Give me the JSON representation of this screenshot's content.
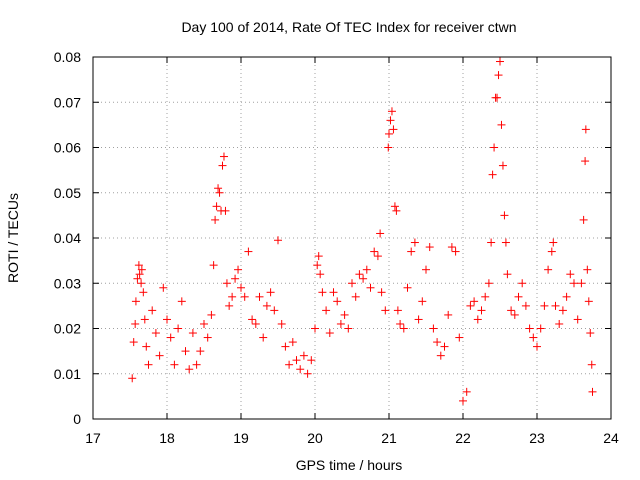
{
  "chart_data": {
    "type": "scatter",
    "title": "Day 100 of 2014, Rate Of TEC Index for receiver ctwn",
    "xlabel": "GPS time / hours",
    "ylabel": "ROTI / TECUs",
    "xlim": [
      17,
      24
    ],
    "ylim": [
      0,
      0.08
    ],
    "xticks": [
      17,
      18,
      19,
      20,
      21,
      22,
      23,
      24
    ],
    "yticks": [
      0,
      0.01,
      0.02,
      0.03,
      0.04,
      0.05,
      0.06,
      0.07,
      0.08
    ],
    "ytick_labels": [
      "0",
      "0.01",
      "0.02",
      "0.03",
      "0.04",
      "0.05",
      "0.06",
      "0.07",
      "0.08"
    ],
    "grid": true,
    "marker": "+",
    "marker_color": "#ff0000",
    "series": [
      {
        "name": "ROTI",
        "points": [
          [
            17.53,
            0.009
          ],
          [
            17.55,
            0.017
          ],
          [
            17.57,
            0.021
          ],
          [
            17.58,
            0.026
          ],
          [
            17.6,
            0.031
          ],
          [
            17.62,
            0.034
          ],
          [
            17.63,
            0.032
          ],
          [
            17.65,
            0.03
          ],
          [
            17.66,
            0.033
          ],
          [
            17.68,
            0.028
          ],
          [
            17.7,
            0.022
          ],
          [
            17.72,
            0.016
          ],
          [
            17.75,
            0.012
          ],
          [
            17.8,
            0.024
          ],
          [
            17.85,
            0.019
          ],
          [
            17.9,
            0.014
          ],
          [
            17.95,
            0.029
          ],
          [
            18.0,
            0.022
          ],
          [
            18.05,
            0.018
          ],
          [
            18.1,
            0.012
          ],
          [
            18.15,
            0.02
          ],
          [
            18.2,
            0.026
          ],
          [
            18.25,
            0.015
          ],
          [
            18.3,
            0.011
          ],
          [
            18.35,
            0.019
          ],
          [
            18.4,
            0.012
          ],
          [
            18.45,
            0.015
          ],
          [
            18.5,
            0.021
          ],
          [
            18.55,
            0.018
          ],
          [
            18.6,
            0.023
          ],
          [
            18.63,
            0.034
          ],
          [
            18.65,
            0.044
          ],
          [
            18.67,
            0.047
          ],
          [
            18.69,
            0.051
          ],
          [
            18.71,
            0.05
          ],
          [
            18.73,
            0.046
          ],
          [
            18.75,
            0.056
          ],
          [
            18.77,
            0.058
          ],
          [
            18.79,
            0.046
          ],
          [
            18.81,
            0.03
          ],
          [
            18.84,
            0.025
          ],
          [
            18.88,
            0.027
          ],
          [
            18.92,
            0.031
          ],
          [
            18.96,
            0.033
          ],
          [
            19.0,
            0.029
          ],
          [
            19.05,
            0.027
          ],
          [
            19.1,
            0.037
          ],
          [
            19.15,
            0.022
          ],
          [
            19.2,
            0.021
          ],
          [
            19.25,
            0.027
          ],
          [
            19.3,
            0.018
          ],
          [
            19.35,
            0.025
          ],
          [
            19.4,
            0.028
          ],
          [
            19.45,
            0.024
          ],
          [
            19.5,
            0.0395
          ],
          [
            19.55,
            0.021
          ],
          [
            19.6,
            0.016
          ],
          [
            19.65,
            0.012
          ],
          [
            19.7,
            0.017
          ],
          [
            19.75,
            0.013
          ],
          [
            19.8,
            0.011
          ],
          [
            19.85,
            0.014
          ],
          [
            19.9,
            0.01
          ],
          [
            19.95,
            0.013
          ],
          [
            20.0,
            0.02
          ],
          [
            20.03,
            0.034
          ],
          [
            20.05,
            0.036
          ],
          [
            20.07,
            0.032
          ],
          [
            20.1,
            0.028
          ],
          [
            20.15,
            0.024
          ],
          [
            20.2,
            0.019
          ],
          [
            20.25,
            0.028
          ],
          [
            20.3,
            0.026
          ],
          [
            20.35,
            0.021
          ],
          [
            20.4,
            0.023
          ],
          [
            20.45,
            0.02
          ],
          [
            20.5,
            0.03
          ],
          [
            20.55,
            0.027
          ],
          [
            20.6,
            0.032
          ],
          [
            20.65,
            0.031
          ],
          [
            20.7,
            0.033
          ],
          [
            20.75,
            0.029
          ],
          [
            20.8,
            0.037
          ],
          [
            20.85,
            0.036
          ],
          [
            20.88,
            0.041
          ],
          [
            20.9,
            0.028
          ],
          [
            20.95,
            0.024
          ],
          [
            20.99,
            0.06
          ],
          [
            21.0,
            0.063
          ],
          [
            21.02,
            0.066
          ],
          [
            21.04,
            0.068
          ],
          [
            21.06,
            0.064
          ],
          [
            21.08,
            0.047
          ],
          [
            21.1,
            0.046
          ],
          [
            21.12,
            0.024
          ],
          [
            21.15,
            0.021
          ],
          [
            21.2,
            0.02
          ],
          [
            21.25,
            0.029
          ],
          [
            21.3,
            0.037
          ],
          [
            21.35,
            0.039
          ],
          [
            21.4,
            0.022
          ],
          [
            21.45,
            0.026
          ],
          [
            21.5,
            0.033
          ],
          [
            21.55,
            0.038
          ],
          [
            21.6,
            0.02
          ],
          [
            21.65,
            0.017
          ],
          [
            21.7,
            0.014
          ],
          [
            21.75,
            0.016
          ],
          [
            21.8,
            0.023
          ],
          [
            21.85,
            0.038
          ],
          [
            21.9,
            0.037
          ],
          [
            21.95,
            0.018
          ],
          [
            22.0,
            0.004
          ],
          [
            22.05,
            0.006
          ],
          [
            22.1,
            0.025
          ],
          [
            22.15,
            0.026
          ],
          [
            22.2,
            0.022
          ],
          [
            22.25,
            0.024
          ],
          [
            22.3,
            0.027
          ],
          [
            22.35,
            0.03
          ],
          [
            22.38,
            0.039
          ],
          [
            22.4,
            0.054
          ],
          [
            22.42,
            0.06
          ],
          [
            22.44,
            0.071
          ],
          [
            22.46,
            0.071
          ],
          [
            22.48,
            0.076
          ],
          [
            22.5,
            0.079
          ],
          [
            22.52,
            0.065
          ],
          [
            22.54,
            0.056
          ],
          [
            22.56,
            0.045
          ],
          [
            22.58,
            0.039
          ],
          [
            22.6,
            0.032
          ],
          [
            22.65,
            0.024
          ],
          [
            22.7,
            0.023
          ],
          [
            22.75,
            0.027
          ],
          [
            22.8,
            0.03
          ],
          [
            22.85,
            0.025
          ],
          [
            22.9,
            0.02
          ],
          [
            22.95,
            0.018
          ],
          [
            23.0,
            0.016
          ],
          [
            23.05,
            0.02
          ],
          [
            23.1,
            0.025
          ],
          [
            23.15,
            0.033
          ],
          [
            23.2,
            0.037
          ],
          [
            23.22,
            0.039
          ],
          [
            23.25,
            0.025
          ],
          [
            23.3,
            0.021
          ],
          [
            23.35,
            0.024
          ],
          [
            23.4,
            0.027
          ],
          [
            23.45,
            0.032
          ],
          [
            23.5,
            0.03
          ],
          [
            23.55,
            0.022
          ],
          [
            23.6,
            0.03
          ],
          [
            23.63,
            0.044
          ],
          [
            23.65,
            0.057
          ],
          [
            23.66,
            0.064
          ],
          [
            23.68,
            0.033
          ],
          [
            23.7,
            0.026
          ],
          [
            23.72,
            0.019
          ],
          [
            23.74,
            0.012
          ],
          [
            23.75,
            0.006
          ]
        ]
      }
    ]
  }
}
